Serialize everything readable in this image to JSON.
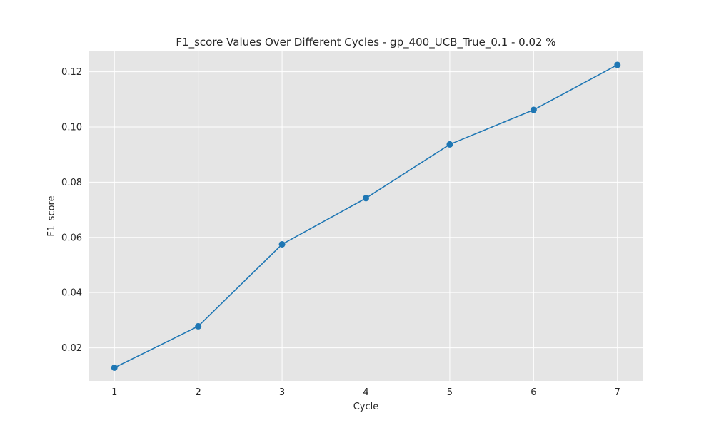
{
  "chart_data": {
    "type": "line",
    "title": "F1_score Values Over Different Cycles - gp_400_UCB_True_0.1 - 0.02 %",
    "xlabel": "Cycle",
    "ylabel": "F1_score",
    "x": [
      1,
      2,
      3,
      4,
      5,
      6,
      7
    ],
    "series": [
      {
        "values": [
          0.0128,
          0.0278,
          0.0575,
          0.0742,
          0.0937,
          0.1062,
          0.1225
        ]
      }
    ],
    "xlim": [
      0.7,
      7.3
    ],
    "ylim": [
      0.008,
      0.1274
    ],
    "xticks": [
      1,
      2,
      3,
      4,
      5,
      6,
      7
    ],
    "yticks": [
      0.02,
      0.04,
      0.06,
      0.08,
      0.1,
      0.12
    ],
    "ytick_labels": [
      "0.02",
      "0.04",
      "0.06",
      "0.08",
      "0.10",
      "0.12"
    ],
    "grid": true,
    "colors": {
      "background": "#e5e5e5",
      "grid": "#ffffff",
      "line": "#1f77b4"
    }
  }
}
